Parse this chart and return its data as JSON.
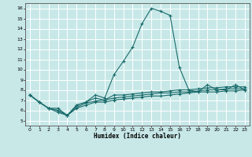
{
  "xlabel": "Humidex (Indice chaleur)",
  "bg_color": "#c8e8e8",
  "grid_color": "#ffffff",
  "line_color": "#1a6b6b",
  "xlim": [
    -0.5,
    23.5
  ],
  "ylim": [
    4.5,
    16.5
  ],
  "xticks": [
    0,
    1,
    2,
    3,
    4,
    5,
    6,
    7,
    8,
    9,
    10,
    11,
    12,
    13,
    14,
    15,
    16,
    17,
    18,
    19,
    20,
    21,
    22,
    23
  ],
  "yticks": [
    5,
    6,
    7,
    8,
    9,
    10,
    11,
    12,
    13,
    14,
    15,
    16
  ],
  "line1_x": [
    0,
    1,
    2,
    3,
    4,
    5,
    6,
    7,
    8,
    9,
    10,
    11,
    12,
    13,
    14,
    15,
    16,
    17,
    18,
    19,
    20,
    21,
    22,
    23
  ],
  "line1_y": [
    7.5,
    6.8,
    6.2,
    6.2,
    5.5,
    6.5,
    6.8,
    7.5,
    7.2,
    9.5,
    10.8,
    12.2,
    14.5,
    16.0,
    15.7,
    15.3,
    10.2,
    8.0,
    7.8,
    8.5,
    8.0,
    8.0,
    8.5,
    8.0
  ],
  "line2_x": [
    0,
    1,
    2,
    3,
    4,
    5,
    6,
    7,
    8,
    9,
    10,
    11,
    12,
    13,
    14,
    15,
    16,
    17,
    18,
    19,
    20,
    21,
    22,
    23
  ],
  "line2_y": [
    7.5,
    6.8,
    6.2,
    6.0,
    5.5,
    6.5,
    6.8,
    7.2,
    7.0,
    7.5,
    7.5,
    7.6,
    7.7,
    7.8,
    7.8,
    7.9,
    8.0,
    8.0,
    8.1,
    8.2,
    8.2,
    8.3,
    8.3,
    8.3
  ],
  "line3_x": [
    0,
    1,
    2,
    3,
    4,
    5,
    6,
    7,
    8,
    9,
    10,
    11,
    12,
    13,
    14,
    15,
    16,
    17,
    18,
    19,
    20,
    21,
    22,
    23
  ],
  "line3_y": [
    7.5,
    6.8,
    6.2,
    6.0,
    5.5,
    6.3,
    6.7,
    6.9,
    7.0,
    7.2,
    7.3,
    7.4,
    7.5,
    7.6,
    7.7,
    7.7,
    7.8,
    7.8,
    7.9,
    8.0,
    8.0,
    8.1,
    8.1,
    8.1
  ],
  "line4_x": [
    0,
    1,
    2,
    3,
    4,
    5,
    6,
    7,
    8,
    9,
    10,
    11,
    12,
    13,
    14,
    15,
    16,
    17,
    18,
    19,
    20,
    21,
    22,
    23
  ],
  "line4_y": [
    7.5,
    6.8,
    6.2,
    5.8,
    5.5,
    6.2,
    6.5,
    6.8,
    6.8,
    7.0,
    7.1,
    7.2,
    7.3,
    7.4,
    7.4,
    7.5,
    7.6,
    7.7,
    7.8,
    7.8,
    7.8,
    7.9,
    7.9,
    8.0
  ]
}
